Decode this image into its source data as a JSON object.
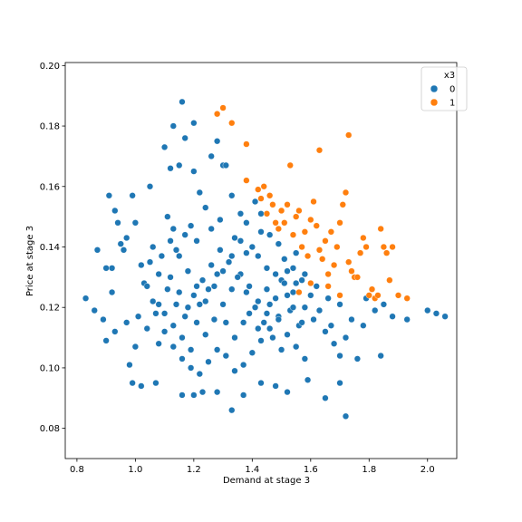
{
  "chart_data": {
    "type": "scatter",
    "title": "",
    "xlabel": "Demand at stage 3",
    "ylabel": "Price at stage 3",
    "xlim": [
      0.76,
      2.1
    ],
    "ylim": [
      0.07,
      0.201
    ],
    "xticks": [
      "0.8",
      "1.0",
      "1.2",
      "1.4",
      "1.6",
      "1.8",
      "2.0"
    ],
    "yticks": [
      "0.08",
      "0.10",
      "0.12",
      "0.14",
      "0.16",
      "0.18",
      "0.20"
    ],
    "grid": false,
    "legend": {
      "title": "x3",
      "placement": "top-right",
      "entries": [
        {
          "label": "0",
          "color": "#1f77b4"
        },
        {
          "label": "1",
          "color": "#ff7f0e"
        }
      ]
    },
    "series": [
      {
        "name": "0",
        "color": "#1f77b4",
        "points": [
          [
            0.83,
            0.123
          ],
          [
            0.87,
            0.139
          ],
          [
            0.86,
            0.119
          ],
          [
            0.89,
            0.116
          ],
          [
            0.9,
            0.133
          ],
          [
            0.91,
            0.157
          ],
          [
            0.92,
            0.133
          ],
          [
            0.9,
            0.109
          ],
          [
            0.92,
            0.125
          ],
          [
            0.93,
            0.152
          ],
          [
            0.94,
            0.148
          ],
          [
            0.95,
            0.141
          ],
          [
            0.93,
            0.112
          ],
          [
            0.96,
            0.139
          ],
          [
            0.97,
            0.143
          ],
          [
            0.97,
            0.115
          ],
          [
            0.98,
            0.101
          ],
          [
            0.99,
            0.095
          ],
          [
            0.99,
            0.157
          ],
          [
            1.0,
            0.148
          ],
          [
            1.0,
            0.107
          ],
          [
            1.02,
            0.134
          ],
          [
            1.02,
            0.094
          ],
          [
            1.03,
            0.128
          ],
          [
            1.04,
            0.113
          ],
          [
            1.05,
            0.16
          ],
          [
            1.06,
            0.14
          ],
          [
            1.07,
            0.095
          ],
          [
            1.08,
            0.108
          ],
          [
            1.08,
            0.121
          ],
          [
            1.1,
            0.173
          ],
          [
            1.12,
            0.166
          ],
          [
            1.13,
            0.18
          ],
          [
            1.15,
            0.167
          ],
          [
            1.16,
            0.188
          ],
          [
            1.17,
            0.176
          ],
          [
            1.2,
            0.181
          ],
          [
            1.2,
            0.165
          ],
          [
            1.22,
            0.158
          ],
          [
            1.24,
            0.153
          ],
          [
            1.26,
            0.17
          ],
          [
            1.28,
            0.175
          ],
          [
            1.3,
            0.167
          ],
          [
            1.31,
            0.167
          ],
          [
            1.33,
            0.157
          ],
          [
            1.36,
            0.151
          ],
          [
            1.38,
            0.148
          ],
          [
            1.41,
            0.155
          ],
          [
            1.43,
            0.151
          ],
          [
            1.46,
            0.144
          ],
          [
            1.49,
            0.141
          ],
          [
            1.52,
            0.132
          ],
          [
            1.55,
            0.138
          ],
          [
            1.58,
            0.131
          ],
          [
            1.62,
            0.127
          ],
          [
            1.66,
            0.123
          ],
          [
            1.7,
            0.121
          ],
          [
            1.74,
            0.116
          ],
          [
            1.78,
            0.114
          ],
          [
            1.82,
            0.119
          ],
          [
            1.85,
            0.121
          ],
          [
            1.88,
            0.117
          ],
          [
            1.93,
            0.116
          ],
          [
            2.0,
            0.119
          ],
          [
            2.03,
            0.118
          ],
          [
            2.06,
            0.117
          ],
          [
            1.16,
            0.091
          ],
          [
            1.2,
            0.091
          ],
          [
            1.23,
            0.092
          ],
          [
            1.28,
            0.092
          ],
          [
            1.33,
            0.086
          ],
          [
            1.37,
            0.091
          ],
          [
            1.43,
            0.095
          ],
          [
            1.48,
            0.094
          ],
          [
            1.52,
            0.092
          ],
          [
            1.59,
            0.096
          ],
          [
            1.65,
            0.09
          ],
          [
            1.7,
            0.095
          ],
          [
            1.72,
            0.084
          ],
          [
            1.76,
            0.103
          ],
          [
            1.84,
            0.104
          ],
          [
            1.11,
            0.15
          ],
          [
            1.13,
            0.146
          ],
          [
            1.14,
            0.139
          ],
          [
            1.17,
            0.144
          ],
          [
            1.19,
            0.147
          ],
          [
            1.21,
            0.142
          ],
          [
            1.26,
            0.146
          ],
          [
            1.29,
            0.149
          ],
          [
            1.34,
            0.143
          ],
          [
            1.38,
            0.138
          ],
          [
            1.42,
            0.137
          ],
          [
            1.45,
            0.133
          ],
          [
            1.5,
            0.129
          ],
          [
            1.54,
            0.125
          ],
          [
            1.58,
            0.12
          ],
          [
            1.61,
            0.116
          ],
          [
            1.65,
            0.112
          ],
          [
            1.68,
            0.108
          ],
          [
            1.7,
            0.104
          ],
          [
            1.04,
            0.127
          ],
          [
            1.07,
            0.118
          ],
          [
            1.1,
            0.112
          ],
          [
            1.13,
            0.107
          ],
          [
            1.16,
            0.103
          ],
          [
            1.19,
            0.1
          ],
          [
            1.22,
            0.098
          ],
          [
            1.25,
            0.102
          ],
          [
            1.28,
            0.106
          ],
          [
            1.31,
            0.104
          ],
          [
            1.34,
            0.099
          ],
          [
            1.37,
            0.101
          ],
          [
            1.4,
            0.105
          ],
          [
            1.43,
            0.109
          ],
          [
            1.46,
            0.113
          ],
          [
            1.49,
            0.117
          ],
          [
            1.52,
            0.111
          ],
          [
            1.55,
            0.107
          ],
          [
            1.58,
            0.103
          ],
          [
            1.12,
            0.13
          ],
          [
            1.15,
            0.125
          ],
          [
            1.18,
            0.12
          ],
          [
            1.21,
            0.115
          ],
          [
            1.24,
            0.111
          ],
          [
            1.27,
            0.116
          ],
          [
            1.3,
            0.121
          ],
          [
            1.33,
            0.126
          ],
          [
            1.36,
            0.131
          ],
          [
            1.39,
            0.127
          ],
          [
            1.42,
            0.122
          ],
          [
            1.45,
            0.118
          ],
          [
            1.48,
            0.123
          ],
          [
            1.51,
            0.128
          ],
          [
            1.54,
            0.133
          ],
          [
            1.57,
            0.129
          ],
          [
            1.6,
            0.124
          ],
          [
            1.05,
            0.135
          ],
          [
            1.08,
            0.131
          ],
          [
            1.11,
            0.126
          ],
          [
            1.14,
            0.121
          ],
          [
            1.17,
            0.117
          ],
          [
            1.2,
            0.124
          ],
          [
            1.23,
            0.129
          ],
          [
            1.26,
            0.134
          ],
          [
            1.29,
            0.139
          ],
          [
            1.32,
            0.135
          ],
          [
            1.35,
            0.13
          ],
          [
            1.38,
            0.125
          ],
          [
            1.41,
            0.12
          ],
          [
            1.44,
            0.115
          ],
          [
            1.47,
            0.11
          ],
          [
            1.5,
            0.106
          ],
          [
            1.53,
            0.119
          ],
          [
            1.56,
            0.114
          ],
          [
            1.01,
            0.117
          ],
          [
            1.06,
            0.122
          ],
          [
            1.09,
            0.137
          ],
          [
            1.12,
            0.142
          ],
          [
            1.15,
            0.137
          ],
          [
            1.18,
            0.132
          ],
          [
            1.21,
            0.127
          ],
          [
            1.24,
            0.122
          ],
          [
            1.27,
            0.127
          ],
          [
            1.3,
            0.132
          ],
          [
            1.33,
            0.137
          ],
          [
            1.36,
            0.142
          ],
          [
            1.39,
            0.118
          ],
          [
            1.42,
            0.113
          ],
          [
            1.45,
            0.126
          ],
          [
            1.48,
            0.131
          ],
          [
            1.51,
            0.136
          ],
          [
            1.54,
            0.12
          ],
          [
            1.57,
            0.115
          ],
          [
            1.1,
            0.118
          ],
          [
            1.13,
            0.114
          ],
          [
            1.16,
            0.11
          ],
          [
            1.19,
            0.106
          ],
          [
            1.22,
            0.121
          ],
          [
            1.25,
            0.126
          ],
          [
            1.28,
            0.131
          ],
          [
            1.31,
            0.115
          ],
          [
            1.34,
            0.11
          ],
          [
            1.37,
            0.115
          ],
          [
            1.4,
            0.14
          ],
          [
            1.43,
            0.145
          ],
          [
            1.46,
            0.121
          ],
          [
            1.49,
            0.116
          ],
          [
            1.52,
            0.124
          ],
          [
            1.55,
            0.128
          ],
          [
            1.63,
            0.119
          ],
          [
            1.67,
            0.114
          ],
          [
            1.72,
            0.11
          ],
          [
            1.79,
            0.123
          ]
        ]
      },
      {
        "name": "1",
        "color": "#ff7f0e",
        "points": [
          [
            1.28,
            0.184
          ],
          [
            1.3,
            0.186
          ],
          [
            1.33,
            0.181
          ],
          [
            1.38,
            0.174
          ],
          [
            1.38,
            0.162
          ],
          [
            1.42,
            0.159
          ],
          [
            1.43,
            0.156
          ],
          [
            1.44,
            0.16
          ],
          [
            1.45,
            0.151
          ],
          [
            1.46,
            0.157
          ],
          [
            1.47,
            0.154
          ],
          [
            1.48,
            0.148
          ],
          [
            1.49,
            0.146
          ],
          [
            1.5,
            0.152
          ],
          [
            1.51,
            0.148
          ],
          [
            1.52,
            0.154
          ],
          [
            1.53,
            0.167
          ],
          [
            1.54,
            0.144
          ],
          [
            1.55,
            0.15
          ],
          [
            1.56,
            0.152
          ],
          [
            1.57,
            0.14
          ],
          [
            1.58,
            0.145
          ],
          [
            1.59,
            0.137
          ],
          [
            1.6,
            0.149
          ],
          [
            1.61,
            0.155
          ],
          [
            1.62,
            0.147
          ],
          [
            1.63,
            0.172
          ],
          [
            1.63,
            0.139
          ],
          [
            1.64,
            0.136
          ],
          [
            1.65,
            0.142
          ],
          [
            1.66,
            0.131
          ],
          [
            1.67,
            0.145
          ],
          [
            1.68,
            0.134
          ],
          [
            1.69,
            0.14
          ],
          [
            1.7,
            0.148
          ],
          [
            1.71,
            0.154
          ],
          [
            1.72,
            0.158
          ],
          [
            1.73,
            0.177
          ],
          [
            1.73,
            0.135
          ],
          [
            1.74,
            0.132
          ],
          [
            1.75,
            0.13
          ],
          [
            1.76,
            0.13
          ],
          [
            1.77,
            0.138
          ],
          [
            1.78,
            0.143
          ],
          [
            1.79,
            0.14
          ],
          [
            1.8,
            0.124
          ],
          [
            1.81,
            0.126
          ],
          [
            1.82,
            0.123
          ],
          [
            1.83,
            0.124
          ],
          [
            1.84,
            0.146
          ],
          [
            1.85,
            0.14
          ],
          [
            1.86,
            0.138
          ],
          [
            1.87,
            0.129
          ],
          [
            1.88,
            0.14
          ],
          [
            1.9,
            0.124
          ],
          [
            1.93,
            0.123
          ],
          [
            1.56,
            0.125
          ],
          [
            1.6,
            0.128
          ],
          [
            1.66,
            0.127
          ],
          [
            1.7,
            0.124
          ]
        ]
      }
    ]
  }
}
